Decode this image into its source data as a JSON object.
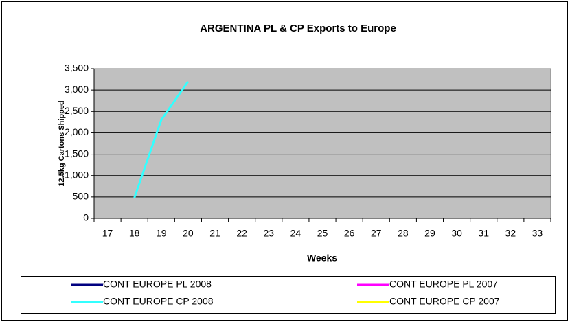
{
  "chart_data": {
    "type": "line",
    "title": "ARGENTINA PL & CP Exports to Europe",
    "x_label": "Weeks",
    "y_label": "12.5kg Cartons Shipped",
    "categories": [
      "17",
      "18",
      "19",
      "20",
      "21",
      "22",
      "23",
      "24",
      "25",
      "26",
      "27",
      "28",
      "29",
      "30",
      "31",
      "32",
      "33"
    ],
    "series": [
      {
        "name": "CONT EUROPE PL 2008",
        "color": "#000080",
        "values": [
          null,
          null,
          null,
          null,
          null,
          null,
          null,
          null,
          null,
          null,
          null,
          null,
          null,
          null,
          null,
          null,
          null
        ]
      },
      {
        "name": "CONT EUROPE PL 2007",
        "color": "#ff00ff",
        "values": [
          null,
          null,
          null,
          null,
          null,
          null,
          null,
          null,
          null,
          null,
          null,
          null,
          null,
          null,
          null,
          null,
          null
        ]
      },
      {
        "name": "CONT EUROPE  CP 2008",
        "color": "#33ffff",
        "values": [
          null,
          480,
          2300,
          3200,
          null,
          null,
          null,
          null,
          null,
          null,
          null,
          null,
          null,
          null,
          null,
          null,
          null
        ]
      },
      {
        "name": "CONT EUROPE  CP 2007",
        "color": "#ffff00",
        "values": [
          null,
          null,
          null,
          null,
          null,
          null,
          null,
          null,
          null,
          null,
          null,
          null,
          null,
          null,
          null,
          null,
          null
        ]
      }
    ],
    "ylim": [
      0,
      3500
    ],
    "yticks": [
      0,
      500,
      {
        "value": 1000,
        "label": "1,000"
      },
      {
        "value": 1500,
        "label": "1,500"
      },
      {
        "value": 2000,
        "label": "2,000"
      },
      {
        "value": 2500,
        "label": "2,500"
      },
      {
        "value": 3000,
        "label": "3,000"
      },
      {
        "value": 3500,
        "label": "3,500"
      }
    ],
    "grid": true,
    "plot_background": "#c0c0c0",
    "legend_position": "bottom"
  }
}
